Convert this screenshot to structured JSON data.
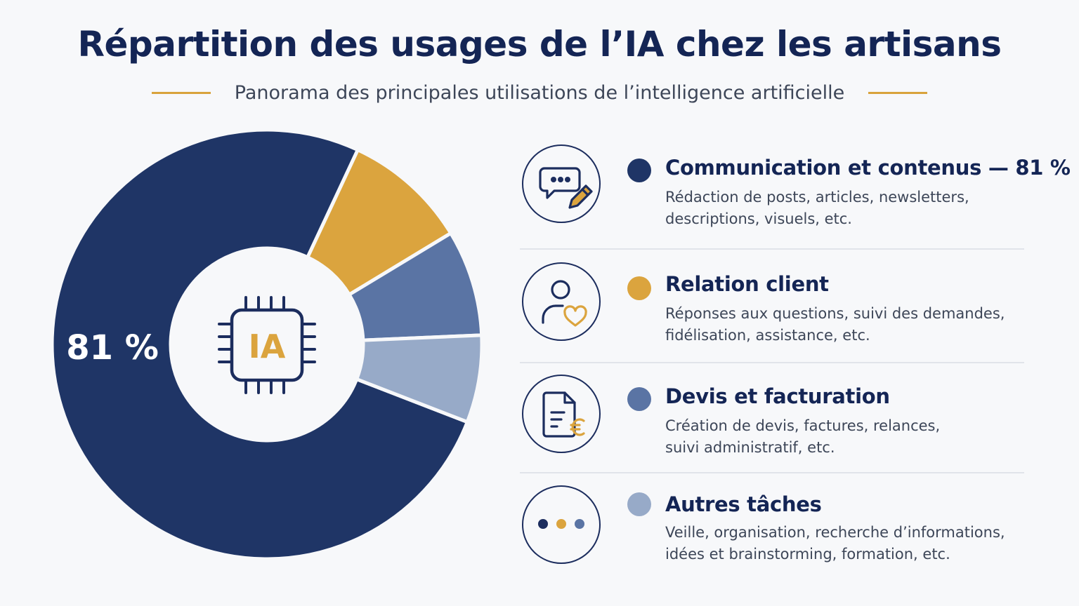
{
  "header": {
    "title": "Répartition des usages de l’IA chez les artisans",
    "subtitle": "Panorama des principales utilisations de l’intelligence artificielle"
  },
  "colors": {
    "navy": "#1f3566",
    "gold": "#dba43e",
    "mid_blue": "#5a74a4",
    "light_blue": "#97aac8",
    "accent_rule": "#d9a33c"
  },
  "chart_data": {
    "type": "pie",
    "style": "donut",
    "center_label": "IA",
    "center_icon": "ai-chip-icon",
    "slices": [
      {
        "name": "Communication et contenus",
        "value": 81,
        "label": "81 %",
        "color": "#1f3566"
      },
      {
        "name": "Relation client",
        "value": 10,
        "color": "#dba43e"
      },
      {
        "name": "Devis et facturation",
        "value": 8.5,
        "color": "#5a74a4"
      },
      {
        "name": "Autres tâches",
        "value": 7,
        "color": "#97aac8"
      }
    ]
  },
  "legend": {
    "items": [
      {
        "title": "Communication et contenus — 81 %",
        "desc_line1": "Rédaction de posts, articles, newsletters,",
        "desc_line2": "descriptions, visuels, etc.",
        "color": "#1f3566",
        "icon": "chat-pencil-icon"
      },
      {
        "title": "Relation client",
        "desc_line1": "Réponses aux questions, suivi des demandes,",
        "desc_line2": "fidélisation, assistance, etc.",
        "color": "#dba43e",
        "icon": "user-heart-icon"
      },
      {
        "title": "Devis et facturation",
        "desc_line1": "Création de devis, factures, relances,",
        "desc_line2": "suivi administratif, etc.",
        "color": "#5a74a4",
        "icon": "invoice-euro-icon"
      },
      {
        "title": "Autres tâches",
        "desc_line1": "Veille, organisation, recherche d’informations,",
        "desc_line2": "idées et brainstorming, formation, etc.",
        "color": "#97aac8",
        "icon": "more-dots-icon"
      }
    ]
  }
}
